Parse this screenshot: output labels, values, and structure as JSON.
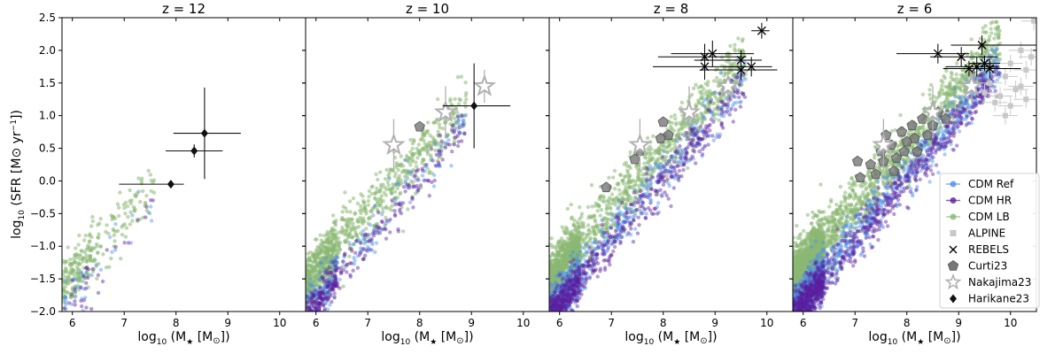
{
  "chart_data": {
    "type": "scatter",
    "ylabel_base": "log",
    "ylabel_sub": "10",
    "ylabel_rest": " (SFR [M",
    "ylabel_sun": "⊙",
    "ylabel_units": " yr",
    "ylabel_exp": "−1",
    "ylabel_close": "])",
    "xlabel_base": "log",
    "xlabel_sub": "10",
    "xlabel_rest": " (M",
    "xlabel_star": "★",
    "xlabel_units": " [M",
    "xlabel_sun": "⊙",
    "xlabel_close": "])",
    "xlim": [
      5.8,
      10.5
    ],
    "ylim": [
      -2.0,
      2.5
    ],
    "xticks": [
      "6",
      "7",
      "8",
      "9",
      "10"
    ],
    "yticks": [
      "−2.0",
      "−1.5",
      "−1.0",
      "−0.5",
      "0.0",
      "0.5",
      "1.0",
      "1.5",
      "2.0",
      "2.5"
    ],
    "colors": {
      "cdm_ref": "#4a8ef0",
      "cdm_hr": "#5b1f9e",
      "cdm_lb": "#8ab873",
      "alpine": "#c8c8c8",
      "rebels": "#000000",
      "curti23": "#777777",
      "nakajima23": "#b0b0b0",
      "harikane23": "#111111"
    },
    "legend": {
      "position": "right of last panel",
      "entries": [
        "CDM Ref",
        "CDM HR",
        "CDM LB",
        "ALPINE",
        "REBELS",
        "Curti23",
        "Nakajima23",
        "Harikane23"
      ]
    },
    "panels": [
      {
        "title": "z = 12",
        "harikane23": [
          {
            "x": 7.9,
            "y": -0.05,
            "xerr": [
              1.0,
              0.25
            ],
            "yerr": [
              0.05,
              0.05
            ]
          },
          {
            "x": 8.35,
            "y": 0.46,
            "xerr": [
              0.55,
              0.55
            ],
            "yerr": [
              0.1,
              0.1
            ]
          },
          {
            "x": 8.55,
            "y": 0.73,
            "xerr": [
              0.6,
              0.7
            ],
            "yerr": [
              0.7,
              0.7
            ]
          }
        ],
        "nakajima23": [],
        "curti23": [],
        "rebels": [],
        "alpine": [],
        "sim": {
          "x_range": [
            5.8,
            7.6
          ],
          "lb": 260,
          "ref": 40,
          "hr": 40
        }
      },
      {
        "title": "z = 10",
        "harikane23": [
          {
            "x": 9.05,
            "y": 1.15,
            "xerr": [
              0.6,
              0.7
            ],
            "yerr": [
              0.65,
              0.65
            ]
          }
        ],
        "nakajima23": [
          {
            "x": 7.5,
            "y": 0.55,
            "xerr": [
              0.0,
              0.0
            ],
            "yerr": [
              0.4,
              0.4
            ]
          },
          {
            "x": 8.5,
            "y": 1.05,
            "xerr": [
              0.0,
              0.0
            ],
            "yerr": [
              0.4,
              0.4
            ]
          },
          {
            "x": 9.25,
            "y": 1.45,
            "xerr": [
              0.0,
              0.0
            ],
            "yerr": [
              0.25,
              0.25
            ]
          }
        ],
        "curti23": [
          {
            "x": 8.0,
            "y": 0.83
          }
        ],
        "rebels": [],
        "alpine": [],
        "sim": {
          "x_range": [
            5.8,
            8.9
          ],
          "lb": 900,
          "ref": 220,
          "hr": 320
        }
      },
      {
        "title": "z = 8",
        "harikane23": [],
        "nakajima23": [
          {
            "x": 7.55,
            "y": 0.55,
            "xerr": [
              0.0,
              0.0
            ],
            "yerr": [
              0.4,
              0.4
            ]
          },
          {
            "x": 8.5,
            "y": 1.05,
            "xerr": [
              0.0,
              0.0
            ],
            "yerr": [
              0.4,
              0.4
            ]
          },
          {
            "x": 9.25,
            "y": 1.45,
            "xerr": [
              0.0,
              0.0
            ],
            "yerr": [
              0.25,
              0.25
            ]
          }
        ],
        "curti23": [
          {
            "x": 6.9,
            "y": -0.1
          },
          {
            "x": 7.55,
            "y": 0.46
          },
          {
            "x": 7.45,
            "y": 0.33
          },
          {
            "x": 8.1,
            "y": 0.7
          },
          {
            "x": 7.95,
            "y": 0.65
          },
          {
            "x": 8.0,
            "y": 0.9
          }
        ],
        "rebels": [
          {
            "x": 9.9,
            "y": 2.3,
            "xerr": [
              0.2,
              0.15
            ],
            "yerr": [
              0.12,
              0.12
            ]
          },
          {
            "x": 8.8,
            "y": 1.9,
            "xerr": [
              0.9,
              0.8
            ],
            "yerr": [
              0.2,
              0.2
            ]
          },
          {
            "x": 8.95,
            "y": 1.95,
            "xerr": [
              0.8,
              0.8
            ],
            "yerr": [
              0.2,
              0.2
            ]
          },
          {
            "x": 8.8,
            "y": 1.75,
            "xerr": [
              1.0,
              0.8
            ],
            "yerr": [
              0.2,
              0.2
            ]
          },
          {
            "x": 9.5,
            "y": 1.85,
            "xerr": [
              0.9,
              0.4
            ],
            "yerr": [
              0.15,
              0.15
            ]
          },
          {
            "x": 9.7,
            "y": 1.75,
            "xerr": [
              0.5,
              0.4
            ],
            "yerr": [
              0.15,
              0.15
            ]
          },
          {
            "x": 9.5,
            "y": 1.7,
            "xerr": [
              0.8,
              0.7
            ],
            "yerr": [
              0.15,
              0.15
            ]
          }
        ],
        "alpine": [],
        "sim": {
          "x_range": [
            5.8,
            9.6
          ],
          "lb": 1500,
          "ref": 600,
          "hr": 700
        }
      },
      {
        "title": "z = 6",
        "harikane23": [],
        "nakajima23": [
          {
            "x": 7.55,
            "y": 0.55,
            "xerr": [
              0.0,
              0.0
            ],
            "yerr": [
              0.4,
              0.4
            ]
          },
          {
            "x": 8.5,
            "y": 1.05,
            "xerr": [
              0.0,
              0.0
            ],
            "yerr": [
              0.4,
              0.4
            ]
          },
          {
            "x": 9.25,
            "y": 1.45,
            "xerr": [
              0.0,
              0.0
            ],
            "yerr": [
              0.25,
              0.25
            ]
          }
        ],
        "curti23": [
          {
            "x": 7.1,
            "y": 0.05
          },
          {
            "x": 7.3,
            "y": 0.25
          },
          {
            "x": 7.5,
            "y": 0.45
          },
          {
            "x": 7.55,
            "y": 0.3
          },
          {
            "x": 7.7,
            "y": 0.55
          },
          {
            "x": 7.8,
            "y": 0.35
          },
          {
            "x": 7.9,
            "y": 0.75
          },
          {
            "x": 8.0,
            "y": 0.6
          },
          {
            "x": 8.1,
            "y": 0.85
          },
          {
            "x": 8.2,
            "y": 0.45
          },
          {
            "x": 8.3,
            "y": 0.95
          },
          {
            "x": 8.4,
            "y": 0.7
          },
          {
            "x": 7.6,
            "y": 0.7
          },
          {
            "x": 8.5,
            "y": 0.85
          },
          {
            "x": 7.4,
            "y": 0.1
          },
          {
            "x": 7.95,
            "y": 0.45
          },
          {
            "x": 8.15,
            "y": 0.65
          },
          {
            "x": 8.6,
            "y": 1.05
          },
          {
            "x": 8.75,
            "y": 0.95
          },
          {
            "x": 7.05,
            "y": 0.3
          },
          {
            "x": 7.75,
            "y": 0.15
          }
        ],
        "rebels": [
          {
            "x": 8.6,
            "y": 1.95,
            "xerr": [
              0.8,
              0.6
            ],
            "yerr": [
              0.15,
              0.15
            ]
          },
          {
            "x": 9.05,
            "y": 1.9,
            "xerr": [
              0.6,
              0.7
            ],
            "yerr": [
              0.15,
              0.15
            ]
          },
          {
            "x": 9.45,
            "y": 2.08,
            "xerr": [
              0.6,
              1.05
            ],
            "yerr": [
              0.15,
              0.15
            ]
          },
          {
            "x": 9.35,
            "y": 1.75,
            "xerr": [
              0.6,
              0.4
            ],
            "yerr": [
              0.15,
              0.15
            ]
          },
          {
            "x": 9.6,
            "y": 1.72,
            "xerr": [
              0.9,
              0.6
            ],
            "yerr": [
              0.15,
              0.15
            ]
          },
          {
            "x": 9.2,
            "y": 1.72,
            "xerr": [
              0.3,
              0.6
            ],
            "yerr": [
              0.12,
              0.12
            ]
          },
          {
            "x": 9.5,
            "y": 1.8,
            "xerr": [
              0.3,
              0.3
            ],
            "yerr": [
              0.12,
              0.12
            ]
          }
        ],
        "alpine": [
          {
            "x": 10.0,
            "y": 1.8
          },
          {
            "x": 9.9,
            "y": 1.6
          },
          {
            "x": 10.1,
            "y": 1.4
          },
          {
            "x": 9.8,
            "y": 1.3
          },
          {
            "x": 10.2,
            "y": 2.0
          },
          {
            "x": 9.6,
            "y": 1.5
          },
          {
            "x": 10.3,
            "y": 1.7
          },
          {
            "x": 9.7,
            "y": 1.2
          },
          {
            "x": 10.4,
            "y": 1.9
          },
          {
            "x": 9.5,
            "y": 1.35
          },
          {
            "x": 10.0,
            "y": 1.15
          },
          {
            "x": 10.2,
            "y": 1.45
          },
          {
            "x": 9.9,
            "y": 1.0
          },
          {
            "x": 10.45,
            "y": 2.45
          },
          {
            "x": 10.3,
            "y": 1.25
          }
        ],
        "sim": {
          "x_range": [
            5.8,
            9.8
          ],
          "lb": 2000,
          "ref": 1100,
          "hr": 1000
        }
      }
    ]
  }
}
